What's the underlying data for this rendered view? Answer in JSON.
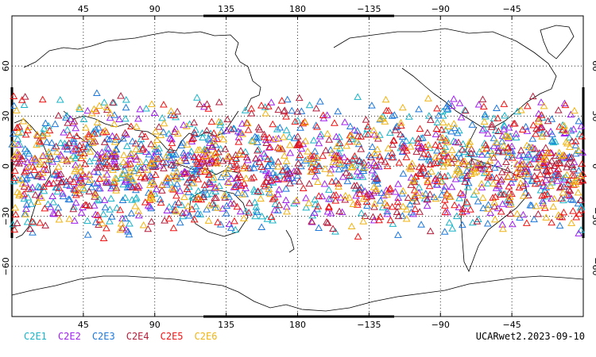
{
  "map": {
    "projection": "cylindrical-equidistant",
    "central_longitude": 180,
    "lon_range": [
      0,
      360
    ],
    "lat_range": [
      -90,
      90
    ],
    "grid": true,
    "grid_style": "dotted",
    "lon_ticks": [
      {
        "lon": 45,
        "label": "45"
      },
      {
        "lon": 90,
        "label": "90"
      },
      {
        "lon": 135,
        "label": "135"
      },
      {
        "lon": 180,
        "label": "180"
      },
      {
        "lon": 225,
        "label": "−135"
      },
      {
        "lon": 270,
        "label": "−90"
      },
      {
        "lon": 315,
        "label": "−45"
      }
    ],
    "lat_ticks": [
      {
        "lat": 60,
        "label": "60"
      },
      {
        "lat": 30,
        "label": "30"
      },
      {
        "lat": 0,
        "label": "0"
      },
      {
        "lat": -30,
        "label": "−30"
      },
      {
        "lat": -60,
        "label": "−60"
      }
    ],
    "marker": "triangle",
    "point_lat_range": [
      -45,
      45
    ],
    "approx_points_per_series": 320
  },
  "legend": {
    "items": [
      {
        "label": "C2E1",
        "color": "#19b4c8"
      },
      {
        "label": "C2E2",
        "color": "#a020f0"
      },
      {
        "label": "C2E3",
        "color": "#1e78dc"
      },
      {
        "label": "C2E4",
        "color": "#b41e3c"
      },
      {
        "label": "C2E5",
        "color": "#f01414"
      },
      {
        "label": "C2E6",
        "color": "#f0b414"
      }
    ]
  },
  "footer": {
    "text": "UCARwet2.2023-09-10"
  }
}
